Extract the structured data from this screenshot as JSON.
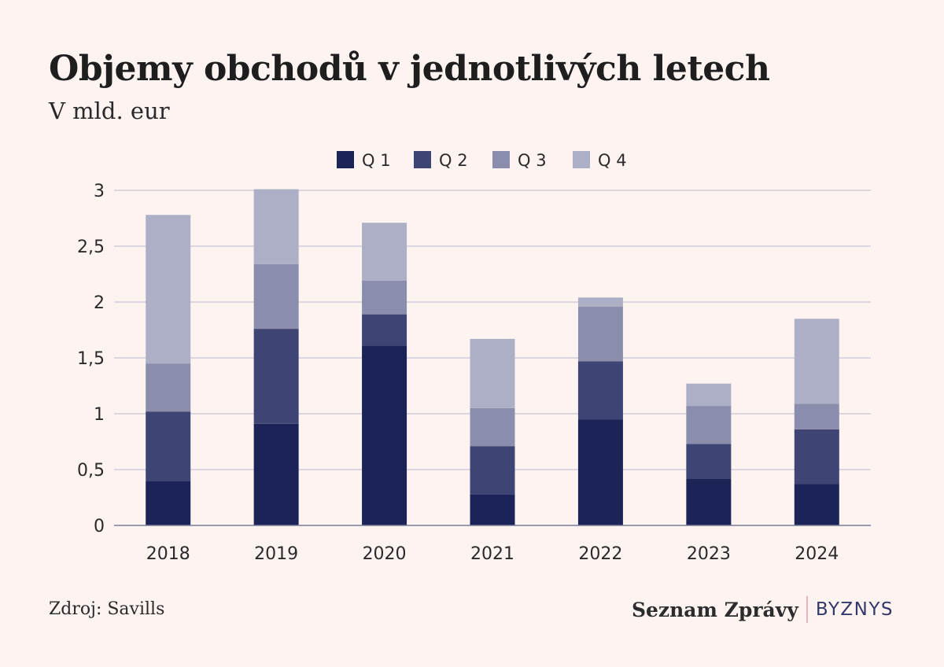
{
  "header": {
    "title": "Objemy obchodů v jednotlivých letech",
    "subtitle": "V mld. eur"
  },
  "footer": {
    "source": "Zdroj: Savills",
    "brand_name": "Seznam Zprávy",
    "brand_section": "BYZNYS"
  },
  "chart_data": {
    "type": "bar",
    "stacked": true,
    "title": "Objemy obchodů v jednotlivých letech",
    "subtitle": "V mld. eur",
    "categories": [
      "2018",
      "2019",
      "2020",
      "2021",
      "2022",
      "2023",
      "2024"
    ],
    "series": [
      {
        "name": "Q 1",
        "color": "#1b2357",
        "values": [
          0.4,
          0.91,
          1.61,
          0.28,
          0.95,
          0.42,
          0.37
        ]
      },
      {
        "name": "Q 2",
        "color": "#3e4574",
        "values": [
          0.62,
          0.85,
          0.28,
          0.43,
          0.52,
          0.31,
          0.49
        ]
      },
      {
        "name": "Q 3",
        "color": "#8a8eac",
        "values": [
          0.43,
          0.58,
          0.3,
          0.34,
          0.49,
          0.34,
          0.23
        ]
      },
      {
        "name": "Q 4",
        "color": "#acafc5",
        "values": [
          1.33,
          0.67,
          0.52,
          0.62,
          0.08,
          0.2,
          0.76
        ]
      }
    ],
    "ylim": [
      0,
      3
    ],
    "yticks": [
      0,
      0.5,
      1,
      1.5,
      2,
      2.5,
      3
    ],
    "ytick_labels": [
      "0",
      "0,5",
      "1",
      "1,5",
      "2",
      "2,5",
      "3"
    ],
    "grid": true,
    "legend_position": "top-center",
    "xlabel": "",
    "ylabel": ""
  }
}
